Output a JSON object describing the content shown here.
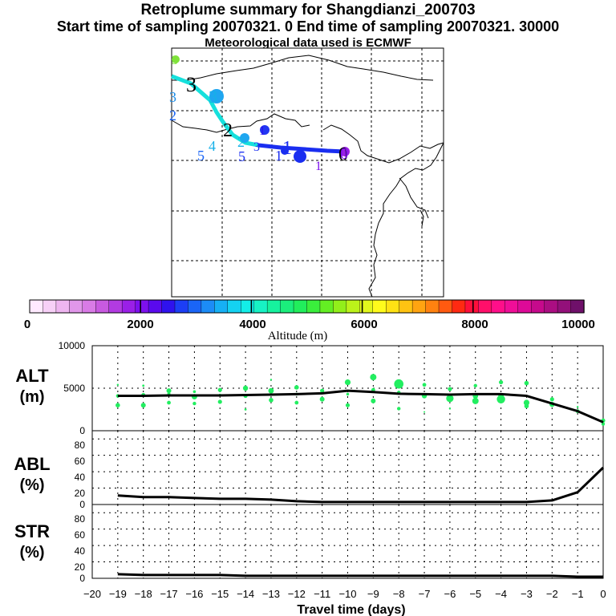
{
  "header": {
    "title": "Retroplume summary for Shangdianzi_200703",
    "sampling": "Start time of sampling 20070321.     0     End time of sampling 20070321. 30000",
    "met": "Meteorological data used is ECMWF"
  },
  "colorbar": {
    "label": "Altitude (m)",
    "tick_labels": [
      "0",
      "2000",
      "4000",
      "6000",
      "8000",
      "10000"
    ],
    "colors": [
      "#ffeaff",
      "#f7d0f7",
      "#eeb5f0",
      "#e197ea",
      "#d97be6",
      "#c85ae0",
      "#b23be1",
      "#9a20e7",
      "#7d10ee",
      "#5a0aee",
      "#2f12ee",
      "#1c3ef5",
      "#1a65f7",
      "#1c8cf7",
      "#16b0f5",
      "#14d2f2",
      "#13eee8",
      "#17f2c4",
      "#16f29e",
      "#1bee7c",
      "#21ee5c",
      "#3aee3c",
      "#64ee23",
      "#92ef1a",
      "#bcf21a",
      "#e2f71d",
      "#fffb1c",
      "#ffe214",
      "#ffc312",
      "#ffa411",
      "#ff8210",
      "#ff5a10",
      "#ff2a12",
      "#ff0f3a",
      "#ff0f6a",
      "#ff0f8a",
      "#f00e98",
      "#dd0a98",
      "#c60a8c",
      "#ab0e82",
      "#93107a",
      "#6f106a"
    ]
  },
  "map": {
    "labels": [
      "3",
      "3",
      "3",
      "3",
      "2",
      "2",
      "5",
      "4",
      "1",
      "2",
      "5",
      "1",
      "3",
      "1",
      "1",
      "0",
      "0"
    ]
  },
  "panels": {
    "alt": {
      "label": "ALT",
      "unit": "(m)",
      "ytick_labels": [
        "0",
        "5000",
        "10000"
      ]
    },
    "abl": {
      "label": "ABL",
      "unit": "(%)",
      "ytick_labels": [
        "0",
        "20",
        "40",
        "60",
        "80"
      ]
    },
    "str": {
      "label": "STR",
      "unit": "(%)",
      "ytick_labels": [
        "0",
        "20",
        "40",
        "60",
        "80"
      ]
    }
  },
  "xaxis": {
    "label": "Travel time (days)",
    "tick_labels": [
      "−20",
      "−19",
      "−18",
      "−17",
      "−16",
      "−15",
      "−14",
      "−13",
      "−12",
      "−11",
      "−10",
      "−9",
      "−8",
      "−7",
      "−6",
      "−5",
      "−4",
      "−3",
      "−2",
      "−1",
      "0"
    ]
  },
  "chart_data": {
    "type": "line",
    "x": [
      -19,
      -18,
      -17,
      -16,
      -15,
      -14,
      -13,
      -12,
      -11,
      -10,
      -9,
      -8,
      -7,
      -6,
      -5,
      -4,
      -3,
      -2,
      -1,
      0
    ],
    "series": [
      {
        "name": "ALT (m)",
        "ylim": [
          0,
          10000
        ],
        "values": [
          4100,
          4100,
          4150,
          4150,
          4150,
          4200,
          4250,
          4300,
          4400,
          4700,
          4550,
          4350,
          4300,
          4250,
          4300,
          4300,
          4100,
          3200,
          2300,
          1000
        ]
      },
      {
        "name": "ABL (%)",
        "ylim": [
          0,
          90
        ],
        "values": [
          11,
          9,
          9,
          8,
          7,
          7,
          6,
          4,
          3,
          3,
          3,
          3,
          3,
          3,
          3,
          3,
          3,
          5,
          15,
          45
        ]
      },
      {
        "name": "STR (%)",
        "ylim": [
          0,
          90
        ],
        "values": [
          5,
          4,
          4,
          4,
          4,
          3,
          3,
          3,
          3,
          3,
          3,
          3,
          3,
          3,
          3,
          3,
          3,
          3,
          2,
          2
        ]
      }
    ],
    "alt_dots": [
      [
        -19,
        5400,
        1.2
      ],
      [
        -19,
        4100,
        2.2
      ],
      [
        -19,
        3000,
        2.8
      ],
      [
        -18,
        5300,
        1.4
      ],
      [
        -18,
        4200,
        2.5
      ],
      [
        -18,
        3000,
        3.0
      ],
      [
        -17,
        4700,
        3.0
      ],
      [
        -17,
        4300,
        2.0
      ],
      [
        -17,
        3300,
        2.4
      ],
      [
        -16,
        4600,
        1.8
      ],
      [
        -16,
        4000,
        3.4
      ],
      [
        -16,
        3200,
        2.2
      ],
      [
        -15,
        4800,
        2.6
      ],
      [
        -15,
        4200,
        1.6
      ],
      [
        -15,
        3400,
        2.6
      ],
      [
        -14,
        5000,
        3.2
      ],
      [
        -14,
        4100,
        2.6
      ],
      [
        -14,
        2500,
        1.4
      ],
      [
        -13,
        6000,
        1.2
      ],
      [
        -13,
        4700,
        3.4
      ],
      [
        -13,
        3600,
        2.8
      ],
      [
        -12,
        5100,
        2.8
      ],
      [
        -12,
        4300,
        1.8
      ],
      [
        -12,
        3300,
        2.4
      ],
      [
        -11,
        4700,
        2.6
      ],
      [
        -11,
        3700,
        3.0
      ],
      [
        -10,
        5700,
        3.6
      ],
      [
        -10,
        4300,
        1.8
      ],
      [
        -10,
        3000,
        2.6
      ],
      [
        -9,
        6300,
        4.0
      ],
      [
        -9,
        4800,
        2.4
      ],
      [
        -9,
        3500,
        3.0
      ],
      [
        -8,
        5500,
        5.8
      ],
      [
        -8,
        4500,
        2.2
      ],
      [
        -8,
        2600,
        2.2
      ],
      [
        -7,
        5400,
        2.4
      ],
      [
        -7,
        4100,
        3.2
      ],
      [
        -7,
        2200,
        1.0
      ],
      [
        -6,
        4900,
        2.6
      ],
      [
        -6,
        3800,
        4.6
      ],
      [
        -6,
        2600,
        1.2
      ],
      [
        -5,
        5300,
        2.2
      ],
      [
        -5,
        4100,
        3.4
      ],
      [
        -5,
        3500,
        4.0
      ],
      [
        -4,
        5700,
        2.6
      ],
      [
        -4,
        4100,
        3.4
      ],
      [
        -4,
        3700,
        5.2
      ],
      [
        -3,
        5600,
        2.8
      ],
      [
        -3,
        3300,
        3.6
      ],
      [
        -3,
        2900,
        2.8
      ],
      [
        -2,
        3700,
        2.6
      ],
      [
        -2,
        3100,
        3.2
      ],
      [
        -1,
        2800,
        1.2
      ],
      [
        -1,
        2300,
        2.4
      ],
      [
        0,
        1200,
        2.6
      ],
      [
        0,
        800,
        2.2
      ]
    ],
    "title": "Retroplume summary for Shangdianzi_200703",
    "xlabel": "Travel time (days)",
    "xlim": [
      -20,
      0
    ]
  }
}
